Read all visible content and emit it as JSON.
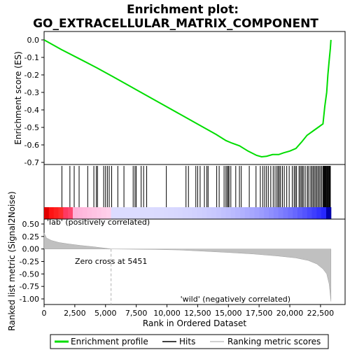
{
  "chart_data": {
    "type": "line",
    "title_line1": "Enrichment plot:",
    "title_line2": "GO_EXTRACELLULAR_MATRIX_COMPONENT",
    "es_panel": {
      "ylabel": "Enrichment score (ES)",
      "ylim": [
        -0.7,
        0.0
      ],
      "yticks": [
        "0.0",
        "-0.1",
        "-0.2",
        "-0.3",
        "-0.4",
        "-0.5",
        "-0.6",
        "-0.7"
      ],
      "ytick_values": [
        0.0,
        -0.1,
        -0.2,
        -0.3,
        -0.4,
        -0.5,
        -0.6,
        -0.7
      ],
      "series_name": "Enrichment profile",
      "color": "#00dd00",
      "x": [
        0,
        1400,
        2800,
        4300,
        5600,
        7000,
        8400,
        9800,
        11200,
        12600,
        14000,
        14800,
        15300,
        15900,
        16600,
        17300,
        17700,
        18100,
        18600,
        19100,
        19500,
        20000,
        20500,
        21000,
        21400,
        21900,
        22300,
        22700,
        22850,
        23000,
        23100,
        23200,
        23300,
        23350
      ],
      "y": [
        0.0,
        -0.055,
        -0.105,
        -0.16,
        -0.21,
        -0.265,
        -0.32,
        -0.375,
        -0.43,
        -0.485,
        -0.54,
        -0.575,
        -0.59,
        -0.605,
        -0.635,
        -0.66,
        -0.668,
        -0.665,
        -0.655,
        -0.655,
        -0.645,
        -0.635,
        -0.62,
        -0.58,
        -0.545,
        -0.52,
        -0.5,
        -0.48,
        -0.38,
        -0.3,
        -0.2,
        -0.12,
        -0.05,
        0.0
      ]
    },
    "hits_panel": {
      "series_name": "Hits",
      "hit_positions": [
        1450,
        2100,
        2450,
        2850,
        3550,
        4050,
        4250,
        4350,
        4850,
        5000,
        5150,
        5300,
        5500,
        6000,
        6500,
        7250,
        7400,
        7500,
        7900,
        8100,
        8350,
        9950,
        11550,
        11750,
        12350,
        12500,
        12700,
        13050,
        13250,
        13350,
        14050,
        14250,
        14650,
        14800,
        14900,
        15000,
        15050,
        15200,
        15600,
        15900,
        16050,
        16700,
        17250,
        17600,
        17800,
        17950,
        18100,
        18250,
        18450,
        18650,
        18800,
        18950,
        19050,
        19150,
        19250,
        19400,
        19550,
        19750,
        19950,
        20200,
        20350,
        20450,
        20550,
        20750,
        20850,
        20950,
        21050,
        21150,
        21300,
        21450,
        21550,
        21700,
        21800,
        21900,
        22000,
        22100,
        22200,
        22300,
        22400,
        22500,
        22600,
        22700,
        22750,
        22800,
        22850,
        22900,
        22950,
        23000,
        23050,
        23100,
        23150,
        23200,
        23250,
        23300
      ]
    },
    "metric_panel": {
      "ylabel": "Ranked list metric (Signal2Noise)",
      "ylim": [
        -1.05,
        0.6
      ],
      "yticks": [
        "0.50",
        "0.25",
        "0.00",
        "-0.25",
        "-0.50",
        "-0.75",
        "-1.00"
      ],
      "ytick_values": [
        0.5,
        0.25,
        0.0,
        -0.25,
        -0.5,
        -0.75,
        -1.0
      ],
      "series_name": "Ranking metric scores",
      "x": [
        0,
        200,
        600,
        1200,
        2000,
        3000,
        4000,
        5000,
        5451,
        7000,
        9000,
        11000,
        13000,
        15000,
        17000,
        19000,
        20500,
        21500,
        22200,
        22700,
        23000,
        23200,
        23350
      ],
      "y": [
        0.32,
        0.22,
        0.17,
        0.13,
        0.1,
        0.07,
        0.045,
        0.015,
        0.0,
        -0.005,
        -0.01,
        -0.02,
        -0.045,
        -0.07,
        -0.1,
        -0.14,
        -0.18,
        -0.23,
        -0.3,
        -0.4,
        -0.5,
        -0.7,
        -1.05
      ],
      "zero_cross_label": "Zero cross at 5451",
      "zero_cross": 5451,
      "pos_label": "'lab' (positively correlated)",
      "neg_label": "'wild' (negatively correlated)"
    },
    "xaxis": {
      "xlabel": "Rank in Ordered Dataset",
      "xlim": [
        0,
        24500
      ],
      "xticks": [
        "0",
        "2,500",
        "5,000",
        "7,500",
        "10,000",
        "12,500",
        "15,000",
        "17,500",
        "20,000",
        "22,500"
      ],
      "xtick_values": [
        0,
        2500,
        5000,
        7500,
        10000,
        12500,
        15000,
        17500,
        20000,
        22500
      ],
      "n_genes": 23350
    },
    "legend": {
      "placement": "bottom",
      "entries": [
        "Enrichment profile",
        "Hits",
        "Ranking metric scores"
      ]
    },
    "colors": {
      "es_line": "#00dd00",
      "positive": "#ff0000",
      "negative": "#0000ff",
      "metric_fill": "#c0c0c0",
      "zero_line": "#b0b0b0"
    }
  }
}
